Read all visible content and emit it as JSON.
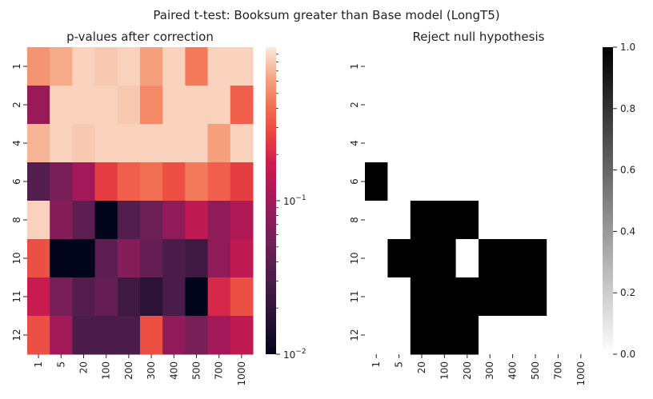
{
  "figure": {
    "suptitle": "Paired t-test: Booksum greater than Base model (LongT5)"
  },
  "chart_data": [
    {
      "type": "heatmap",
      "title": "p-values after correction",
      "xlabel": "",
      "ylabel": "",
      "x_categories": [
        "1",
        "5",
        "20",
        "100",
        "200",
        "300",
        "400",
        "500",
        "700",
        "1000"
      ],
      "y_categories": [
        "1",
        "2",
        "4",
        "6",
        "8",
        "10",
        "11",
        "12"
      ],
      "color_scale": "log",
      "colormap": "rocket",
      "colorbar": {
        "range": [
          0.01,
          1.0
        ],
        "major_ticks": [
          0.01,
          0.1
        ],
        "major_labels": [
          "10^-2",
          "10^-1"
        ]
      },
      "values": [
        [
          0.55,
          0.65,
          0.85,
          0.8,
          0.85,
          0.6,
          0.85,
          0.45,
          0.85,
          0.85
        ],
        [
          0.09,
          0.85,
          0.85,
          0.85,
          0.8,
          0.5,
          0.85,
          0.85,
          0.85,
          0.35
        ],
        [
          0.7,
          0.85,
          0.8,
          0.85,
          0.85,
          0.85,
          0.85,
          0.85,
          0.6,
          0.85
        ],
        [
          0.035,
          0.06,
          0.1,
          0.25,
          0.35,
          0.4,
          0.3,
          0.45,
          0.35,
          0.25
        ],
        [
          0.85,
          0.07,
          0.04,
          0.01,
          0.035,
          0.05,
          0.08,
          0.15,
          0.08,
          0.12
        ],
        [
          0.3,
          0.01,
          0.01,
          0.04,
          0.07,
          0.045,
          0.03,
          0.025,
          0.08,
          0.15
        ],
        [
          0.17,
          0.06,
          0.035,
          0.045,
          0.025,
          0.018,
          0.03,
          0.01,
          0.2,
          0.3
        ],
        [
          0.3,
          0.1,
          0.03,
          0.03,
          0.03,
          0.3,
          0.08,
          0.06,
          0.1,
          0.15
        ]
      ]
    },
    {
      "type": "heatmap",
      "title": "Reject null hypothesis",
      "xlabel": "",
      "ylabel": "",
      "x_categories": [
        "1",
        "5",
        "20",
        "100",
        "200",
        "300",
        "400",
        "500",
        "700",
        "1000"
      ],
      "y_categories": [
        "1",
        "2",
        "4",
        "6",
        "8",
        "10",
        "11",
        "12"
      ],
      "color_scale": "linear",
      "colormap": "Greys",
      "colorbar": {
        "range": [
          0.0,
          1.0
        ],
        "ticks": [
          "0.0",
          "0.2",
          "0.4",
          "0.6",
          "0.8",
          "1.0"
        ]
      },
      "values": [
        [
          0,
          0,
          0,
          0,
          0,
          0,
          0,
          0,
          0,
          0
        ],
        [
          0,
          0,
          0,
          0,
          0,
          0,
          0,
          0,
          0,
          0
        ],
        [
          0,
          0,
          0,
          0,
          0,
          0,
          0,
          0,
          0,
          0
        ],
        [
          1,
          0,
          0,
          0,
          0,
          0,
          0,
          0,
          0,
          0
        ],
        [
          0,
          0,
          1,
          1,
          1,
          0,
          0,
          0,
          0,
          0
        ],
        [
          0,
          1,
          1,
          1,
          0,
          1,
          1,
          1,
          0,
          0
        ],
        [
          0,
          0,
          1,
          1,
          1,
          1,
          1,
          1,
          0,
          0
        ],
        [
          0,
          0,
          1,
          1,
          1,
          0,
          0,
          0,
          0,
          0
        ]
      ]
    }
  ]
}
